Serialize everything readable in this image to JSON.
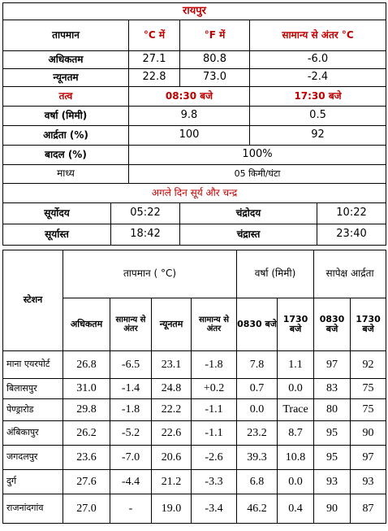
{
  "title": "रायपुर",
  "temp_header": {
    "label": "तापमान",
    "c": "°C में",
    "f": "°F में",
    "dev": "सामान्य से अंतर °C"
  },
  "temp_rows": [
    {
      "label": "अधिकतम",
      "c": "27.1",
      "f": "80.8",
      "dev": "-6.0"
    },
    {
      "label": "न्यूनतम",
      "c": "22.8",
      "f": "73.0",
      "dev": "-2.4"
    }
  ],
  "element_header": {
    "label": "तत्व",
    "t1": "08:30 बजे",
    "t2": "17:30 बजे"
  },
  "rain": {
    "label": "वर्षा (मिमी)",
    "v1": "9.8",
    "v2": "0.5"
  },
  "humidity": {
    "label": "आर्द्रता (%)",
    "v1": "100",
    "v2": "92"
  },
  "cloud": {
    "label": "बादल (%)",
    "value": "100%"
  },
  "wind": {
    "label": "माध्य",
    "value": "05 किमी/घंटा"
  },
  "sun_moon": {
    "title": "अगले दिन सूर्य और चन्द्र",
    "sunrise_label": "सूर्योदय",
    "sunrise": "05:22",
    "moonrise_label": "चंद्रोदय",
    "moonrise": "10:22",
    "sunset_label": "सूर्यास्त",
    "sunset": "18:42",
    "moonset_label": "चंद्रास्त",
    "moonset": "23:40"
  },
  "stations_header": {
    "station": "स्टेशन",
    "temp_group": "तापमान ( °C)",
    "rain_group": "वर्षा (मिमी)",
    "hum_group": "सापेक्ष आर्द्रता",
    "max": "अधिकतम",
    "dev": "सामान्य से अंतर",
    "min": "न्यूनतम",
    "t0830": "0830 बजे",
    "t1730": "1730 बजे"
  },
  "stations": [
    {
      "name": "माना एयरपोर्ट",
      "max": "26.8",
      "max_dev": "-6.5",
      "min": "23.1",
      "min_dev": "-1.8",
      "r0830": "7.8",
      "r1730": "1.1",
      "h0830": "97",
      "h1730": "92"
    },
    {
      "name": "बिलासपुर",
      "max": "31.0",
      "max_dev": "-1.4",
      "min": "24.8",
      "min_dev": "+0.2",
      "r0830": "0.7",
      "r1730": "0.0",
      "h0830": "83",
      "h1730": "75"
    },
    {
      "name": "पेण्ड्रारोड",
      "max": "29.8",
      "max_dev": "-1.8",
      "min": "22.2",
      "min_dev": "-1.1",
      "r0830": "0.0",
      "r1730": "Trace",
      "h0830": "80",
      "h1730": "75"
    },
    {
      "name": "अंबिकापुर",
      "max": "26.2",
      "max_dev": "-5.2",
      "min": "22.6",
      "min_dev": "-1.1",
      "r0830": "23.2",
      "r1730": "8.7",
      "h0830": "95",
      "h1730": "90"
    },
    {
      "name": "जगदलपुर",
      "max": "23.6",
      "max_dev": "-7.0",
      "min": "20.6",
      "min_dev": "-2.6",
      "r0830": "39.3",
      "r1730": "10.8",
      "h0830": "95",
      "h1730": "97"
    },
    {
      "name": "दुर्ग",
      "max": "27.6",
      "max_dev": "-4.4",
      "min": "21.2",
      "min_dev": "-3.3",
      "r0830": "6.8",
      "r1730": "0.0",
      "h0830": "93",
      "h1730": "93"
    },
    {
      "name": "राजनांदगांव",
      "max": "27.0",
      "max_dev": "-",
      "min": "19.0",
      "min_dev": "-3.4",
      "r0830": "46.2",
      "r1730": "0.4",
      "h0830": "90",
      "h1730": "87"
    }
  ]
}
